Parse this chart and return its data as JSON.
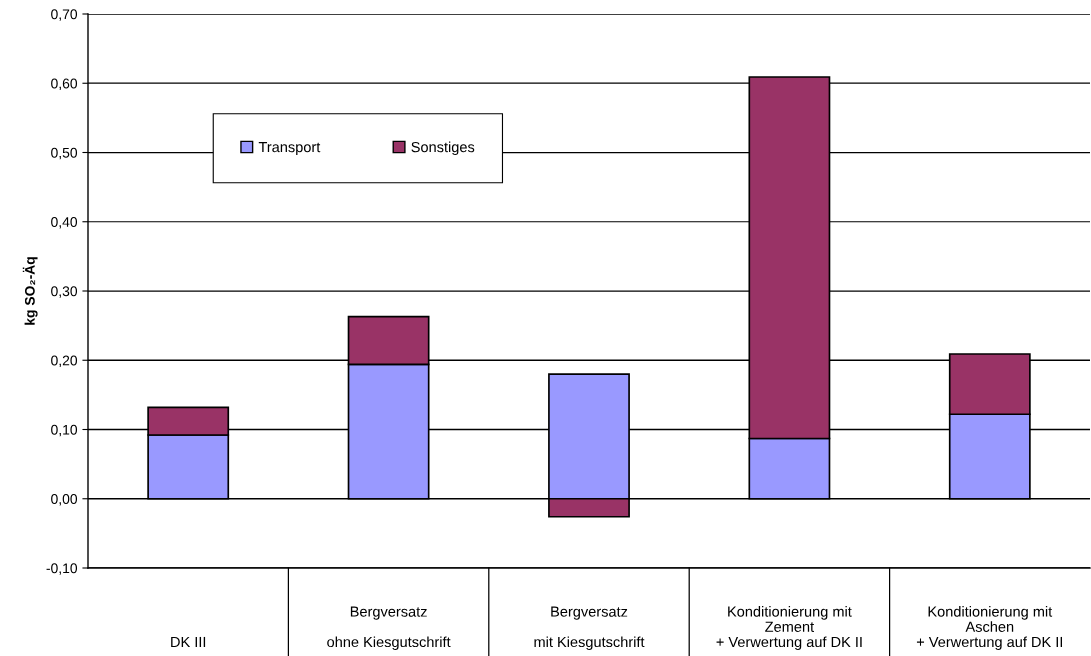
{
  "chart_data": {
    "type": "bar",
    "stacked": true,
    "ylabel": "kg SO₂-Äq",
    "categories": [
      "DK III",
      "Bergversatz\n\nohne Kiesgutschrift",
      "Bergversatz\n\nmit Kiesgutschrift",
      "Konditionierung mit\nZement\n+ Verwertung auf DK II",
      "Konditionierung mit\nAschen\n+ Verwertung auf DK II"
    ],
    "series": [
      {
        "name": "Transport",
        "color": "#9999ff",
        "values": [
          0.092,
          0.194,
          0.18,
          0.087,
          0.122
        ]
      },
      {
        "name": "Sonstiges",
        "color": "#993366",
        "values": [
          0.04,
          0.069,
          -0.026,
          0.522,
          0.087
        ]
      }
    ],
    "ylim": [
      -0.1,
      0.7
    ],
    "yticks": [
      {
        "value": -0.1,
        "label": "-0,10"
      },
      {
        "value": 0.0,
        "label": "0,00"
      },
      {
        "value": 0.1,
        "label": "0,10"
      },
      {
        "value": 0.2,
        "label": "0,20"
      },
      {
        "value": 0.3,
        "label": "0,30"
      },
      {
        "value": 0.4,
        "label": "0,40"
      },
      {
        "value": 0.5,
        "label": "0,50"
      },
      {
        "value": 0.6,
        "label": "0,60"
      },
      {
        "value": 0.7,
        "label": "0,70"
      }
    ],
    "grid": "y",
    "legend": "top left"
  }
}
